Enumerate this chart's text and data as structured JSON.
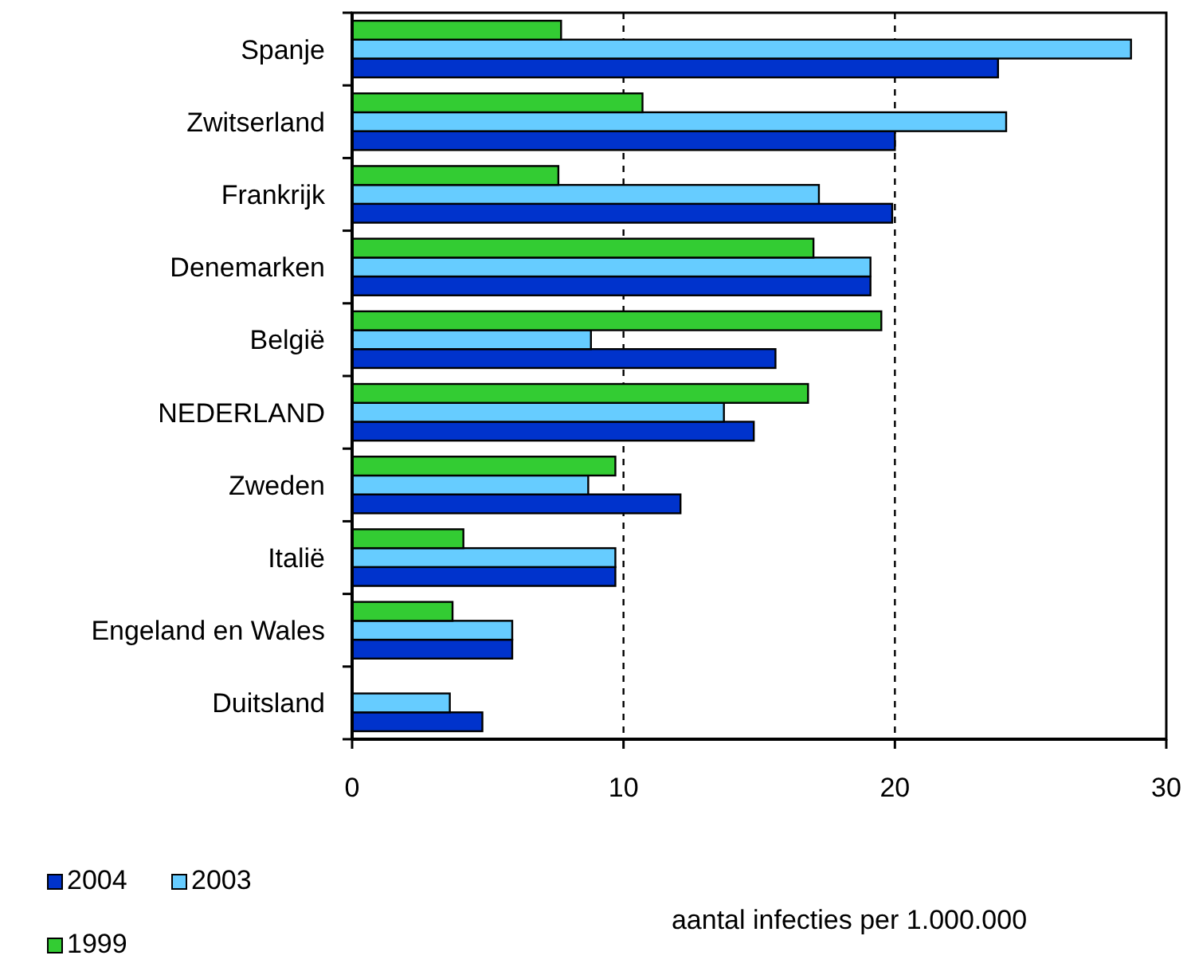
{
  "chart_data": {
    "type": "bar",
    "orientation": "horizontal",
    "xlabel": "aantal infecties per 1.000.000",
    "categories": [
      "Spanje",
      "Zwitserland",
      "Frankrijk",
      "Denemarken",
      "België",
      "NEDERLAND",
      "Zweden",
      "Italië",
      "Engeland en Wales",
      "Duitsland"
    ],
    "series": [
      {
        "name": "2004",
        "color": "#0033cc",
        "values": [
          23.8,
          20.0,
          19.9,
          19.1,
          15.6,
          14.8,
          12.1,
          9.7,
          5.9,
          4.8
        ]
      },
      {
        "name": "2003",
        "color": "#66ccff",
        "values": [
          28.7,
          24.1,
          17.2,
          19.1,
          8.8,
          13.7,
          8.7,
          9.7,
          5.9,
          3.6
        ]
      },
      {
        "name": "1999",
        "color": "#33cc33",
        "values": [
          7.7,
          10.7,
          7.6,
          17.0,
          19.5,
          16.8,
          9.7,
          4.1,
          3.7,
          null
        ]
      }
    ],
    "xlim": [
      0,
      30
    ],
    "xticks": [
      0,
      10,
      20,
      30
    ],
    "grid": "x",
    "legend": "bottom left"
  }
}
